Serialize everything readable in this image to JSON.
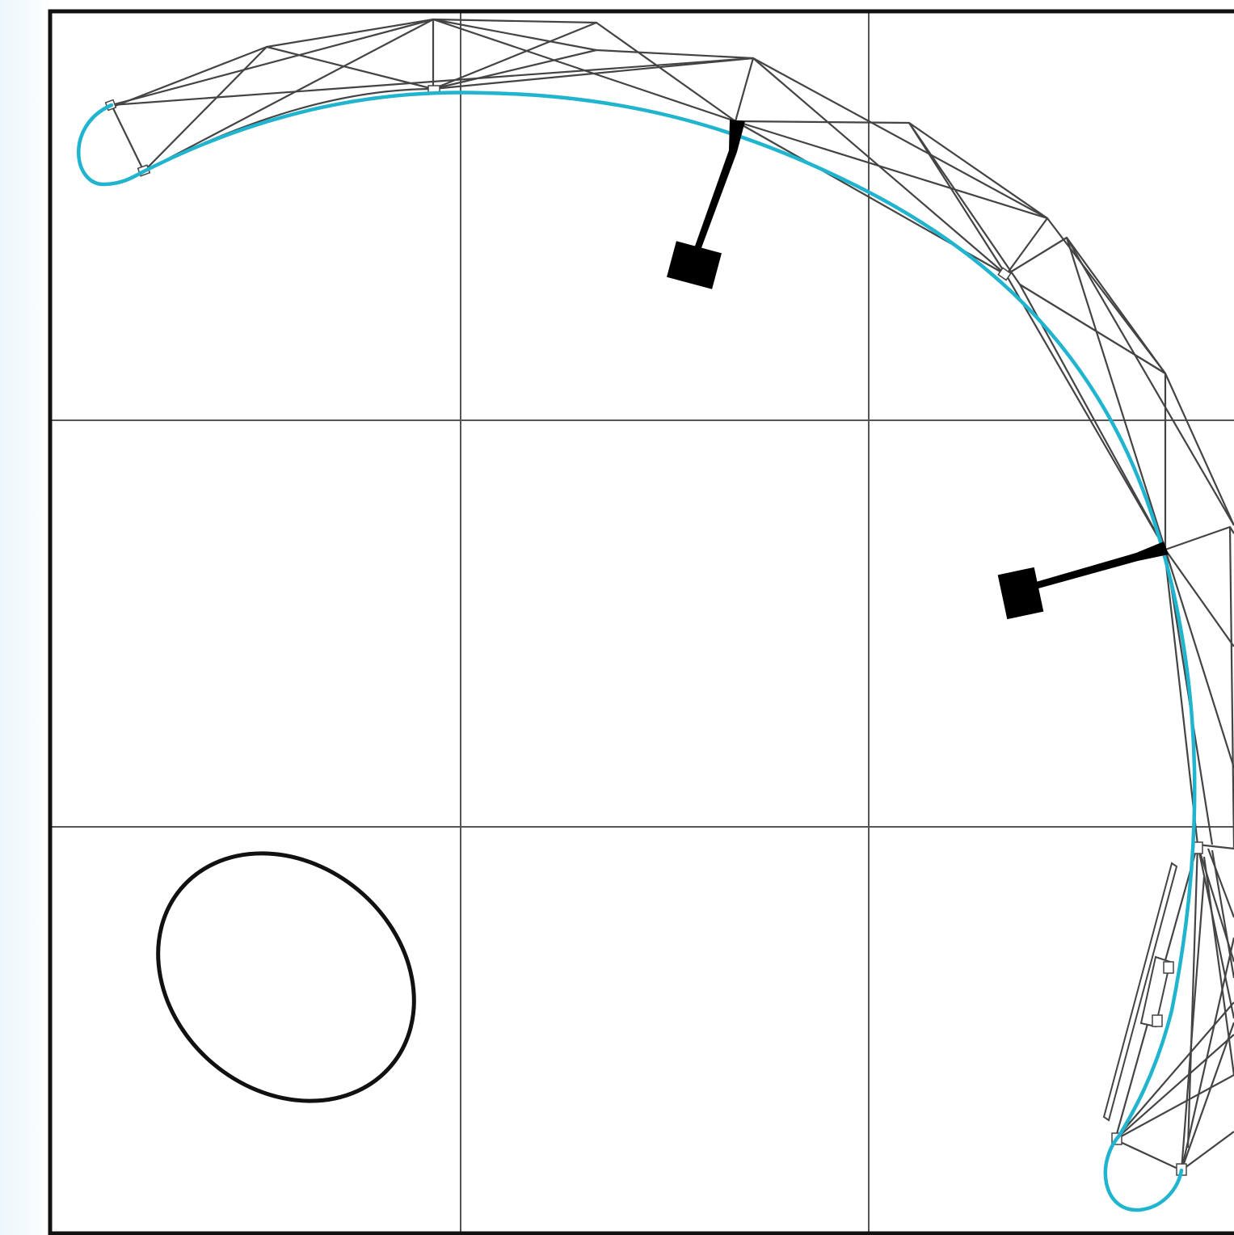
{
  "diagram": {
    "description_free": true,
    "colors": {
      "frame": "#111111",
      "grid": "#555555",
      "curve": "#20b4cf",
      "truss": "#444444",
      "block": "#000000",
      "ellipse": "#111111",
      "background_edge": "#eef7fb"
    },
    "grid": {
      "columns": 3,
      "rows": 3
    },
    "components": {
      "curve": "cyan-hook-curve",
      "truss": "lattice-truss",
      "weights": 2,
      "ellipse": "outline-ellipse"
    }
  }
}
